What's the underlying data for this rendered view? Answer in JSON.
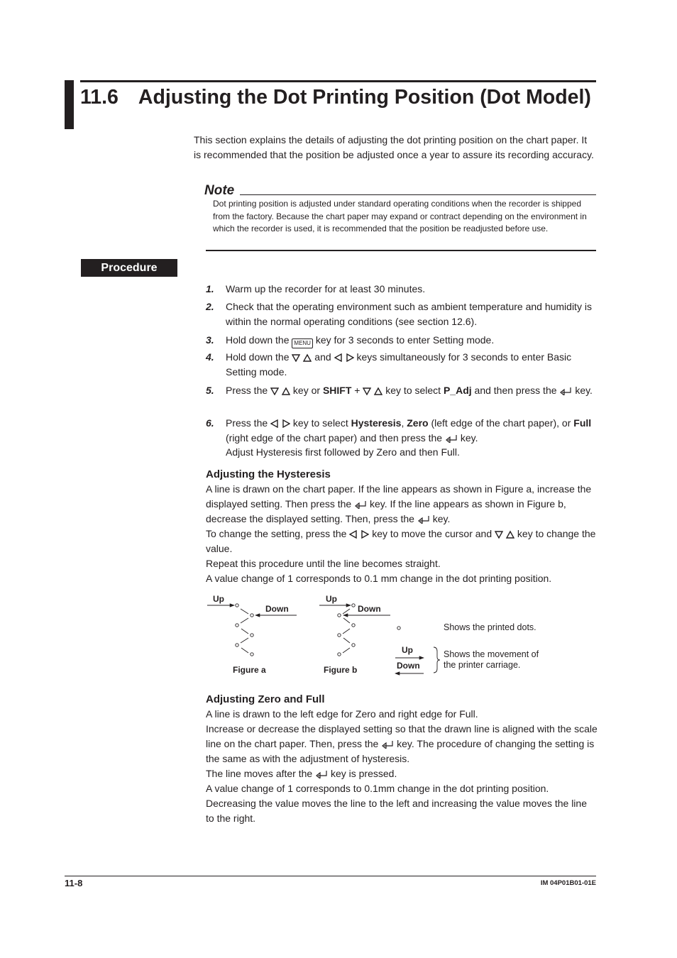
{
  "header": {
    "section": "11.6",
    "title": "Adjusting the Dot Printing Position (Dot Model)"
  },
  "intro": "This section explains the details of adjusting the dot printing position on the chart paper. It is recommended that the position be adjusted once a year to assure its recording accuracy.",
  "note": {
    "label": "Note",
    "text": "Dot printing position is adjusted under standard operating conditions when the recorder is shipped from the factory. Because the chart paper may expand or contract depending on the environment in which the recorder is used, it is recommended that the position be readjusted before use."
  },
  "procedure_label": "Procedure",
  "steps": [
    {
      "num": "1.",
      "parts": [
        "Warm up the recorder for at least 30 minutes."
      ]
    },
    {
      "num": "2.",
      "parts": [
        "Check that the operating environment such as ambient temperature and humidity is within the normal operating conditions (see section 12.6)."
      ]
    },
    {
      "num": "3.",
      "parts": [
        "Hold down the",
        "MENU",
        "key for 3 seconds to enter Setting mode."
      ]
    },
    {
      "num": "4.",
      "parts": [
        "Hold down the",
        "and",
        "keys simultaneously for 3 seconds to enter Basic Setting mode."
      ]
    },
    {
      "num": "5.",
      "parts": [
        "Press the",
        "key or",
        "SHIFT",
        "+",
        "key to select",
        "P_Adj",
        "and then press the",
        "key."
      ]
    },
    {
      "num": "6.",
      "parts": [
        "Press the",
        "key to select",
        "Hysteresis",
        ",",
        "Zero",
        "(left edge of the chart paper), or",
        "Full",
        "(right edge of the chart paper) and then press the",
        "key.",
        "Adjust Hysteresis first followed by Zero and then Full."
      ]
    }
  ],
  "hysteresis": {
    "heading": "Adjusting the Hysteresis",
    "paragraphs": [
      [
        "A line is drawn on the chart paper. If the line appears as shown in Figure a, increase the displayed setting. Then press the",
        "key. If the line appears as shown in Figure b, decrease the displayed setting. Then, press the",
        "key."
      ],
      [
        "To change the setting, press the",
        "key to move the cursor and",
        "key to change the value."
      ],
      [
        "Repeat this procedure until the line becomes straight."
      ],
      [
        "A value change of 1 corresponds to 0.1 mm change in the dot printing position."
      ]
    ]
  },
  "figure": {
    "a": {
      "up": "Up",
      "down": "Down",
      "caption": "Figure a"
    },
    "b": {
      "up": "Up",
      "down": "Down",
      "caption": "Figure b"
    },
    "legend": {
      "dots": "Shows the printed dots.",
      "up": "Up",
      "down": "Down",
      "movement": "Shows the movement of the printer carriage."
    }
  },
  "zero_full": {
    "heading": "Adjusting Zero and Full",
    "paragraphs": [
      [
        "A line is drawn to the left edge for Zero and right edge for Full."
      ],
      [
        "Increase or decrease the displayed setting so that the drawn line is aligned with the scale line on the chart paper. Then, press the",
        "key. The procedure of changing the setting is the same as with the adjustment of hysteresis."
      ],
      [
        "The line moves after the",
        "key is pressed."
      ],
      [
        "A value change of 1 corresponds to 0.1mm change in the dot printing position."
      ],
      [
        "Decreasing the value moves the line to the left and increasing the value moves the line to the right."
      ]
    ]
  },
  "footer": {
    "page": "11-8",
    "doc_id": "IM 04P01B01-01E"
  }
}
